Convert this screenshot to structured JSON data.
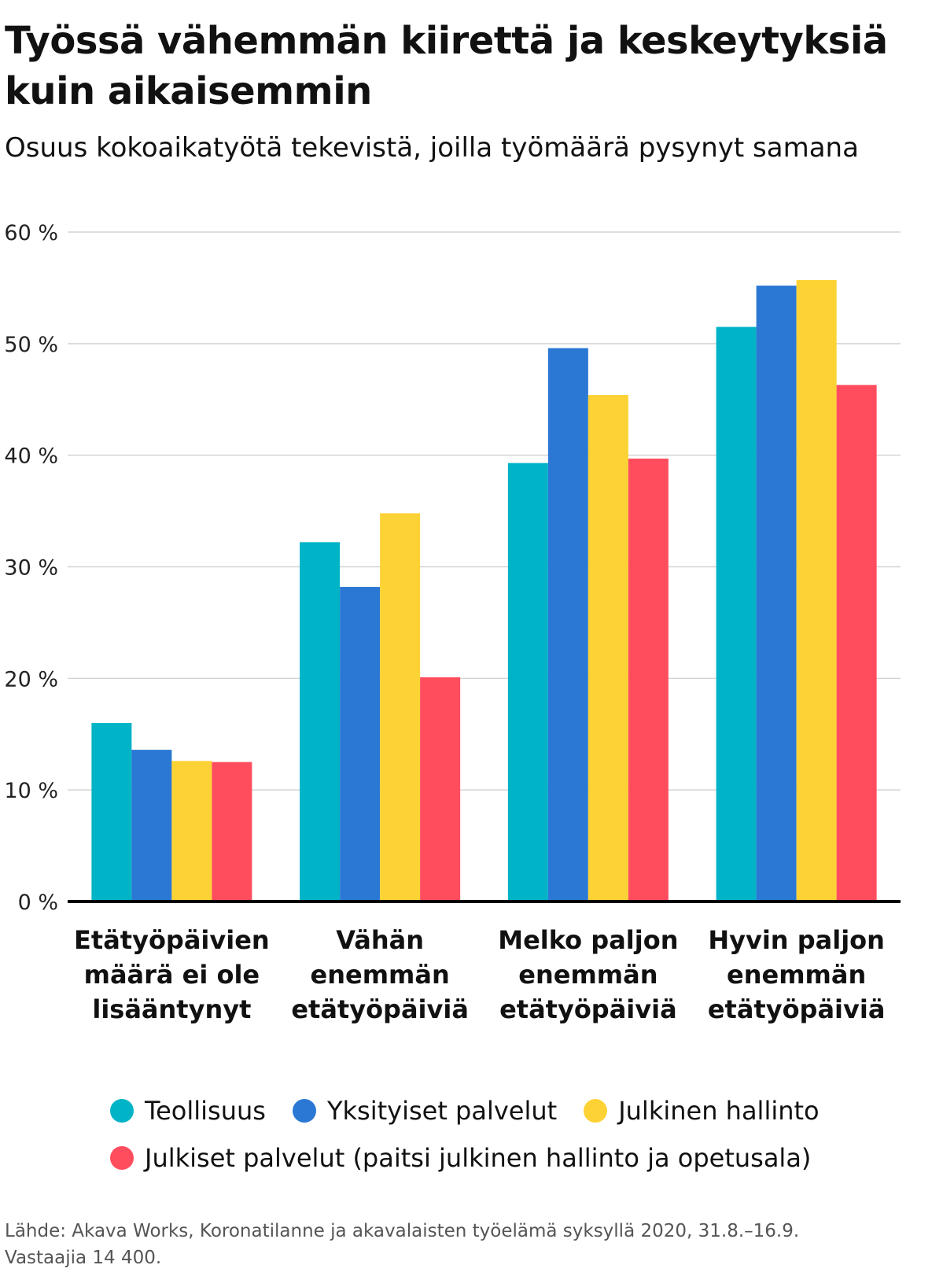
{
  "chart_data": {
    "type": "bar",
    "title": "Työssä vähemmän kiirettä ja keskeytyksiä kuin aikaisemmin",
    "subtitle": "Osuus kokoaikatyötä tekevistä, joilla työmäärä pysynyt samana",
    "xlabel": "",
    "ylabel": "",
    "ylim": [
      0,
      60
    ],
    "yticks": [
      0,
      10,
      20,
      30,
      40,
      50,
      60
    ],
    "ytick_labels": [
      "0 %",
      "10 %",
      "20 %",
      "30 %",
      "40 %",
      "50 %",
      "60 %"
    ],
    "grid": true,
    "legend_position": "bottom",
    "categories": [
      [
        "Etätyöpäivien",
        "määrä ei ole",
        "lisääntynyt"
      ],
      [
        "Vähän",
        "enemmän",
        "etätyöpäiviä"
      ],
      [
        "Melko paljon",
        "enemmän",
        "etätyöpäiviä"
      ],
      [
        "Hyvin paljon",
        "enemmän",
        "etätyöpäiviä"
      ]
    ],
    "series": [
      {
        "name": "Teollisuus",
        "color": "#00b3c6",
        "values": [
          16.0,
          32.2,
          39.3,
          51.5
        ]
      },
      {
        "name": "Yksityiset palvelut",
        "color": "#2a78d4",
        "values": [
          13.6,
          28.2,
          49.6,
          55.2
        ]
      },
      {
        "name": "Julkinen hallinto",
        "color": "#fdd235",
        "values": [
          12.6,
          34.8,
          45.4,
          55.7
        ]
      },
      {
        "name": "Julkiset palvelut (paitsi julkinen hallinto ja opetusala)",
        "color": "#ff4d5e",
        "values": [
          12.5,
          20.1,
          39.7,
          46.3
        ]
      }
    ]
  },
  "legend": {
    "items": [
      {
        "label": "Teollisuus",
        "color": "#00b3c6"
      },
      {
        "label": "Yksityiset palvelut",
        "color": "#2a78d4"
      },
      {
        "label": "Julkinen hallinto",
        "color": "#fdd235"
      },
      {
        "label": "Julkiset palvelut (paitsi julkinen hallinto ja opetusala)",
        "color": "#ff4d5e"
      }
    ]
  },
  "source": {
    "line1": "Lähde: Akava Works, Koronatilanne ja akavalaisten työelämä syksyllä 2020, 31.8.–16.9.",
    "line2": "Vastaajia 14 400."
  }
}
